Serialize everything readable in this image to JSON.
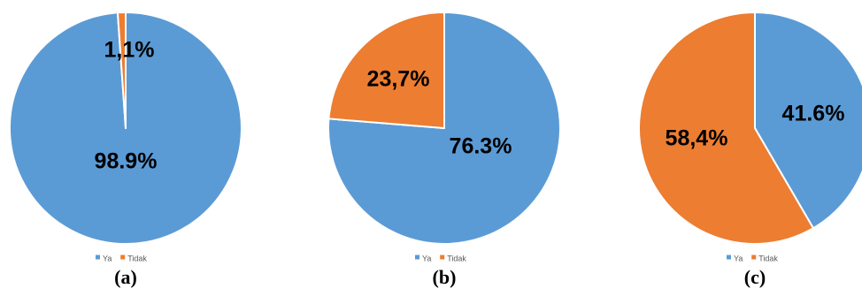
{
  "chart_data": [
    {
      "type": "pie",
      "caption": "(a)",
      "categories": [
        "Ya",
        "Tidak"
      ],
      "values": [
        98.9,
        1.1
      ],
      "data_labels": [
        "98.9%",
        "1,1%"
      ],
      "colors": [
        "#5b9bd5",
        "#ed7d31"
      ],
      "legend": "bottom"
    },
    {
      "type": "pie",
      "caption": "(b)",
      "categories": [
        "Ya",
        "Tidak"
      ],
      "values": [
        76.3,
        23.7
      ],
      "data_labels": [
        "76.3%",
        "23,7%"
      ],
      "colors": [
        "#5b9bd5",
        "#ed7d31"
      ],
      "legend": "bottom"
    },
    {
      "type": "pie",
      "caption": "(c)",
      "categories": [
        "Ya",
        "Tidak"
      ],
      "values": [
        41.6,
        58.4
      ],
      "data_labels": [
        "41.6%",
        "58,4%"
      ],
      "colors": [
        "#5b9bd5",
        "#ed7d31"
      ],
      "legend": "bottom"
    }
  ]
}
